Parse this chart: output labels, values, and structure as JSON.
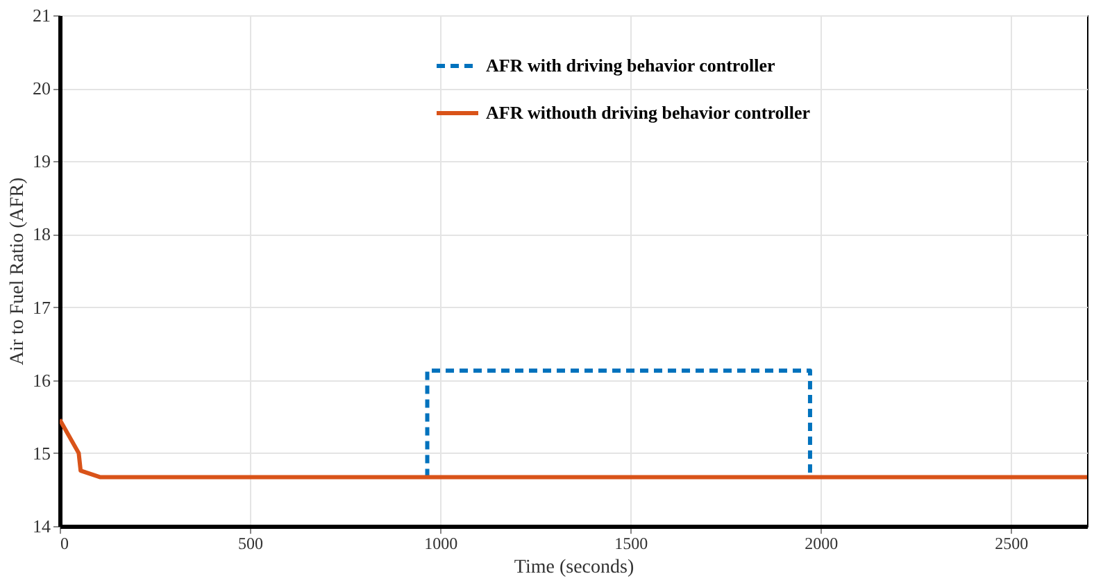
{
  "chart_data": {
    "type": "line",
    "xlabel": "Time (seconds)",
    "ylabel": "Air to Fuel Ratio (AFR)",
    "xlim": [
      0,
      2700
    ],
    "xticks": [
      0,
      500,
      1000,
      1500,
      2000,
      2500
    ],
    "ylim": [
      14,
      21
    ],
    "yticks": [
      14,
      15,
      16,
      17,
      18,
      19,
      20,
      21
    ],
    "grid": true,
    "legend": "top",
    "marker": "none",
    "series": [
      {
        "name": "AFR with driving behavior controller",
        "color": "#0072bd",
        "line_style": "dashed",
        "x": [
          966,
          966,
          1972,
          1972
        ],
        "values": [
          14.67,
          16.13,
          16.13,
          14.67
        ]
      },
      {
        "name": "AFR withouth driving behavior controller",
        "color": "#d95319",
        "line_style": "solid",
        "x": [
          0,
          50,
          55,
          107,
          2700
        ],
        "values": [
          15.46,
          15.0,
          14.76,
          14.67,
          14.67
        ]
      }
    ]
  }
}
